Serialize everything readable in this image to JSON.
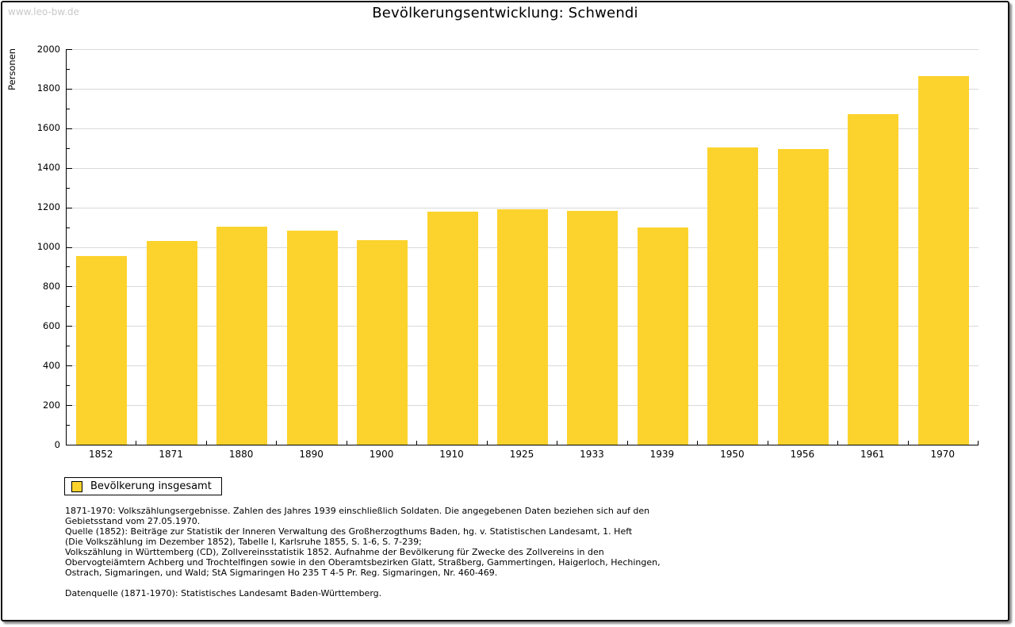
{
  "watermark": "www.leo-bw.de",
  "title": "Bevölkerungsentwicklung: Schwendi",
  "legend": {
    "label": "Bevölkerung insgesamt"
  },
  "colors": {
    "bar": "#fcd32d",
    "grid": "#d9d9d9",
    "axis": "#000000",
    "watermark": "#c9c9c9"
  },
  "chart_data": {
    "type": "bar",
    "title": "Bevölkerungsentwicklung: Schwendi",
    "xlabel": "",
    "ylabel": "Personen",
    "categories": [
      "1852",
      "1871",
      "1880",
      "1890",
      "1900",
      "1910",
      "1925",
      "1933",
      "1939",
      "1950",
      "1956",
      "1961",
      "1970"
    ],
    "values": [
      953,
      1029,
      1102,
      1082,
      1033,
      1180,
      1191,
      1181,
      1098,
      1503,
      1495,
      1671,
      1864
    ],
    "ylim": [
      0,
      2000
    ],
    "ytick_step": 200,
    "yminor_step": 100,
    "grid": true,
    "legend_entries": [
      "Bevölkerung insgesamt"
    ],
    "legend_position": "bottom-left",
    "bar_color": "#fcd32d"
  },
  "footnotes": {
    "lines": [
      "1871-1970: Volkszählungsergebnisse. Zahlen des Jahres 1939 einschließlich Soldaten. Die angegebenen Daten beziehen sich auf den",
      "Gebietsstand vom 27.05.1970.",
      "Quelle (1852): Beiträge zur Statistik der Inneren Verwaltung des Großherzogthums Baden, hg. v. Statistischen Landesamt, 1. Heft",
      "(Die Volkszählung im Dezember 1852), Tabelle I, Karlsruhe 1855, S. 1-6, S. 7-239;",
      "Volkszählung in Württemberg (CD), Zollvereinsstatistik 1852. Aufnahme der Bevölkerung für Zwecke des Zollvereins in den",
      "Obervogteiämtern Achberg und Trochtelfingen sowie in den Oberamtsbezirken Glatt, Straßberg, Gammertingen, Haigerloch, Hechingen,",
      "Ostrach, Sigmaringen, und Wald; StA Sigmaringen Ho 235 T 4-5 Pr. Reg. Sigmaringen, Nr. 460-469."
    ],
    "datasource": "Datenquelle (1871-1970): Statistisches Landesamt Baden-Württemberg."
  }
}
